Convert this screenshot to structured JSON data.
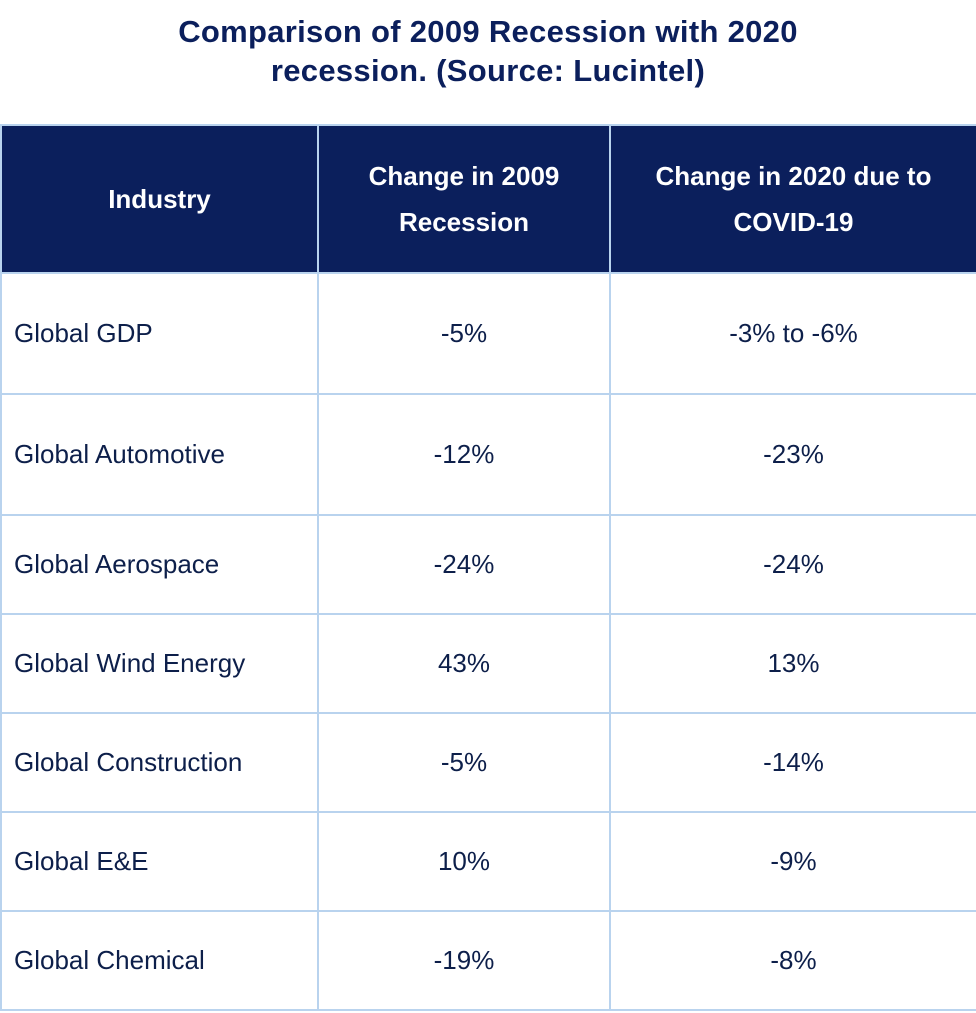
{
  "title": {
    "line1": "Comparison of 2009 Recession with 2020",
    "line2": "recession. (Source: Lucintel)"
  },
  "table": {
    "headers": [
      "Industry",
      "Change in 2009 Recession",
      "Change in 2020 due to COVID-19"
    ],
    "rows": [
      {
        "industry": "Global GDP",
        "change_2009": "-5%",
        "change_2020": "-3% to -6%"
      },
      {
        "industry": "Global Automotive",
        "change_2009": "-12%",
        "change_2020": "-23%"
      },
      {
        "industry": "Global Aerospace",
        "change_2009": "-24%",
        "change_2020": "-24%"
      },
      {
        "industry": "Global Wind Energy",
        "change_2009": "43%",
        "change_2020": "13%"
      },
      {
        "industry": "Global Construction",
        "change_2009": "-5%",
        "change_2020": "-14%"
      },
      {
        "industry": "Global E&E",
        "change_2009": "10%",
        "change_2020": "-9%"
      },
      {
        "industry": "Global Chemical",
        "change_2009": "-19%",
        "change_2020": "-8%"
      }
    ]
  },
  "colors": {
    "header_bg": "#0b1f5c",
    "header_text": "#ffffff",
    "grid_line": "#b9d3ee",
    "body_text": "#0d1f4a"
  }
}
